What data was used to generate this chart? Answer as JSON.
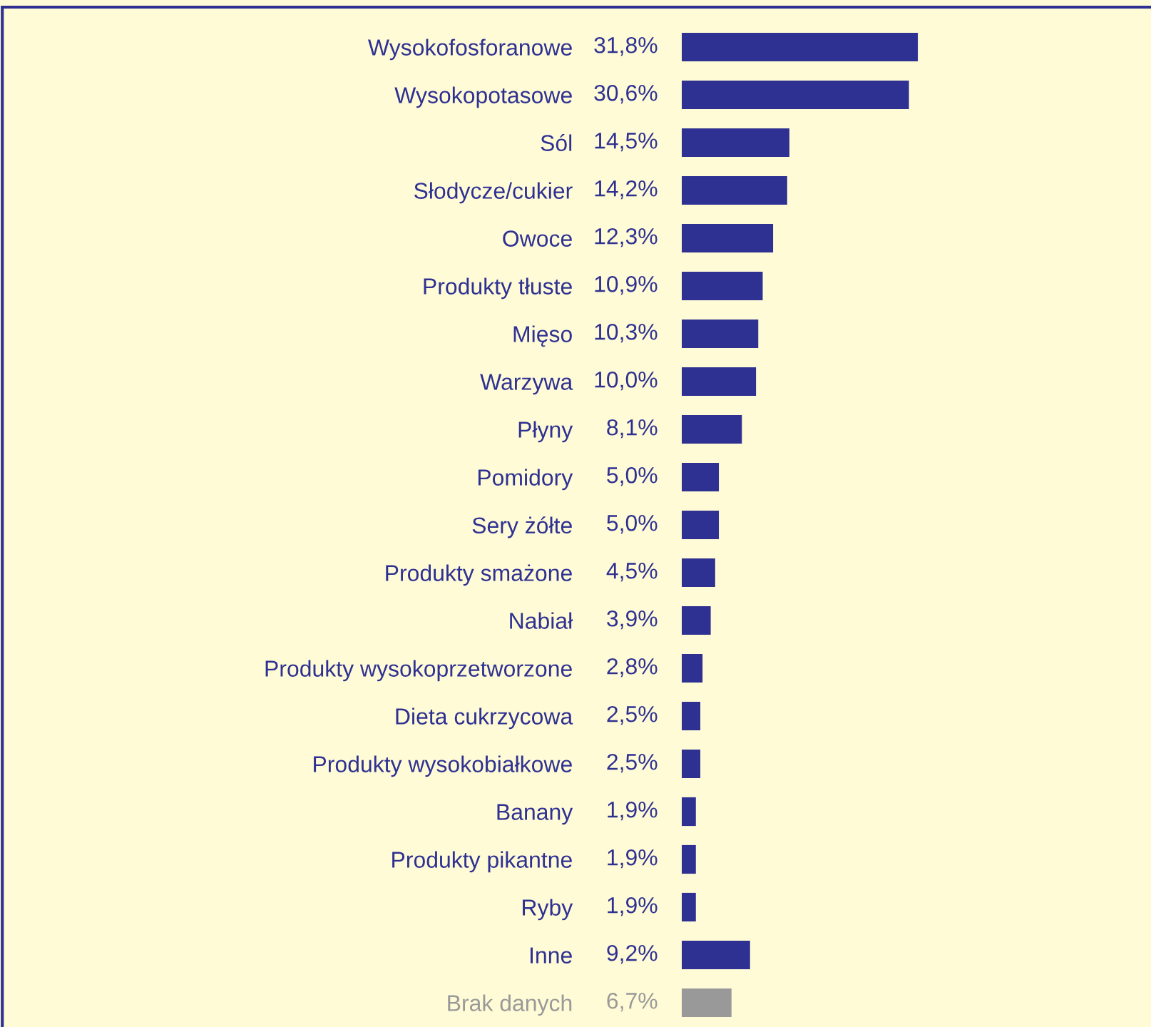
{
  "chart_data": {
    "type": "bar",
    "orientation": "horizontal",
    "categories": [
      "Wysokofosforanowe",
      "Wysokopotasowe",
      "Sól",
      "Słodycze/cukier",
      "Owoce",
      "Produkty tłuste",
      "Mięso",
      "Warzywa",
      "Płyny",
      "Pomidory",
      "Sery żółte",
      "Produkty smażone",
      "Nabiał",
      "Produkty wysokoprzetworzone",
      "Dieta cukrzycowa",
      "Produkty wysokobiałkowe",
      "Banany",
      "Produkty pikantne",
      "Ryby",
      "Inne",
      "Brak danych"
    ],
    "values": [
      31.8,
      30.6,
      14.5,
      14.2,
      12.3,
      10.9,
      10.3,
      10.0,
      8.1,
      5.0,
      5.0,
      4.5,
      3.9,
      2.8,
      2.5,
      2.5,
      1.9,
      1.9,
      1.9,
      9.2,
      6.7
    ],
    "value_labels": [
      "31,8%",
      "30,6%",
      "14,5%",
      "14,2%",
      "12,3%",
      "10,9%",
      "10,3%",
      "10,0%",
      "8,1%",
      "5,0%",
      "5,0%",
      "4,5%",
      "3,9%",
      "2,8%",
      "2,5%",
      "2,5%",
      "1,9%",
      "1,9%",
      "1,9%",
      "9,2%",
      "6,7%"
    ],
    "colors": [
      "#2e3192",
      "#2e3192",
      "#2e3192",
      "#2e3192",
      "#2e3192",
      "#2e3192",
      "#2e3192",
      "#2e3192",
      "#2e3192",
      "#2e3192",
      "#2e3192",
      "#2e3192",
      "#2e3192",
      "#2e3192",
      "#2e3192",
      "#2e3192",
      "#2e3192",
      "#2e3192",
      "#2e3192",
      "#2e3192",
      "#999999"
    ],
    "grid": false,
    "legend": false
  }
}
